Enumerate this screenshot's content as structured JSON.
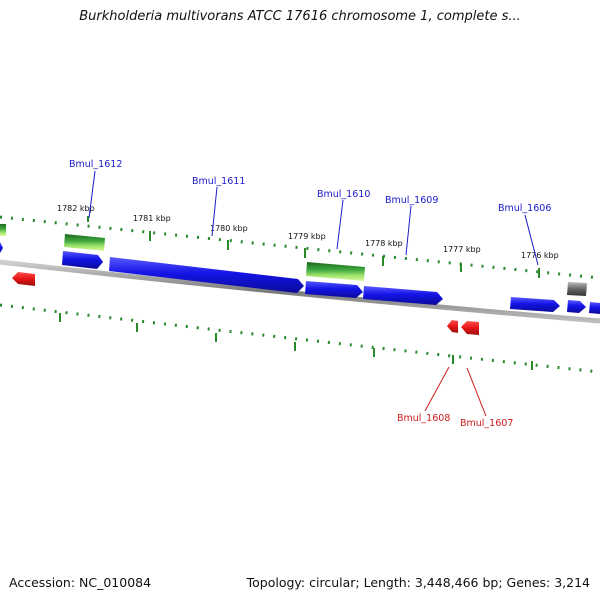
{
  "title": "Burkholderia multivorans ATCC 17616 chromosome 1, complete s...",
  "footer": {
    "accession": "Accession: NC_010084",
    "summary": "Topology: circular; Length: 3,448,466 bp; Genes: 3,214"
  },
  "colors": {
    "forward_gene": "#1414e6",
    "reverse_gene": "#e61414",
    "rna_gene": "#5bbf2a",
    "pseudo_gene": "#777777",
    "backbone": "#8c8c8c",
    "tick": "#2a8a2a",
    "forward_label": "#1a1acc",
    "reverse_label": "#cc1a1a"
  },
  "kbp_labels": [
    "1782 kbp",
    "1781 kbp",
    "1780 kbp",
    "1779 kbp",
    "1778 kbp",
    "1777 kbp",
    "1776 kbp"
  ],
  "gene_labels": {
    "forward": [
      "Bmul_1612",
      "Bmul_1611",
      "Bmul_1610",
      "Bmul_1609",
      "Bmul_1606"
    ],
    "reverse": [
      "Bmul_1608",
      "Bmul_1607"
    ]
  }
}
